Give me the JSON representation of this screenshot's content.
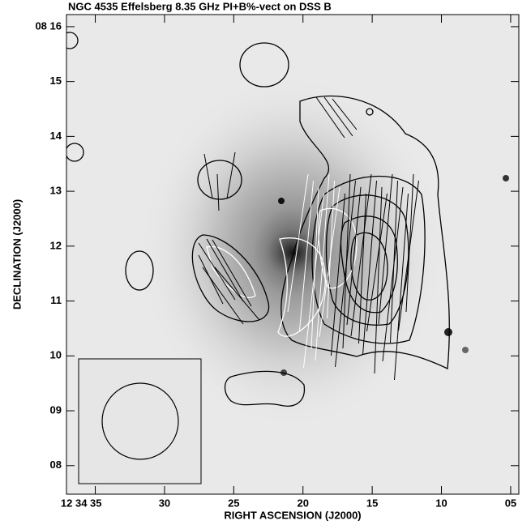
{
  "chart_data": {
    "type": "image",
    "title": "NGC 4535 Effelsberg 8.35 GHz PI+B%-vect on DSS B",
    "x_label": "RIGHT ASCENSION (J2000)",
    "y_label": "DECLINATION (J2000)",
    "xlim": [
      37.08,
      4.41
    ],
    "xticks": [
      {
        "value": 35,
        "label": "12 34 35"
      },
      30,
      25,
      20,
      15,
      10,
      {
        "value": 5,
        "label": "05"
      }
    ],
    "ylim": [
      7.48,
      16.22
    ],
    "yticks": [
      {
        "value": 16,
        "label": "08 16"
      },
      15,
      14,
      13,
      12,
      11,
      10,
      {
        "value": 9,
        "label": "09"
      },
      {
        "value": 8,
        "label": "08"
      }
    ]
  }
}
